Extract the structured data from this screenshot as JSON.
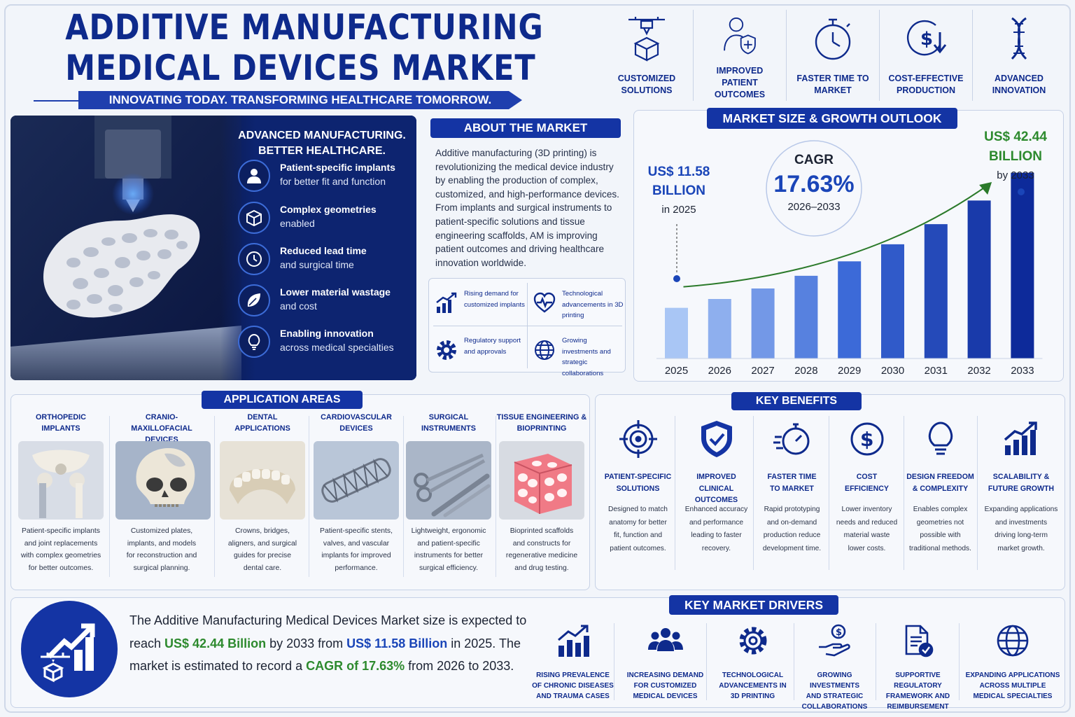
{
  "header": {
    "title_line1": "ADDITIVE MANUFACTURING",
    "title_line2": "MEDICAL DEVICES MARKET",
    "tagline": "INNOVATING TODAY. TRANSFORMING HEALTHCARE TOMORROW."
  },
  "top_features": [
    {
      "label": "CUSTOMIZED SOLUTIONS",
      "icon": "3d-printer-icon"
    },
    {
      "label": "IMPROVED PATIENT OUTCOMES",
      "icon": "patient-shield-icon"
    },
    {
      "label": "FASTER TIME TO MARKET",
      "icon": "stopwatch-icon"
    },
    {
      "label": "COST-EFFECTIVE PRODUCTION",
      "icon": "dollar-down-icon"
    },
    {
      "label": "ADVANCED INNOVATION",
      "icon": "dna-icon"
    }
  ],
  "hero": {
    "heading_line1": "ADVANCED MANUFACTURING.",
    "heading_line2": "BETTER HEALTHCARE.",
    "features": [
      {
        "title": "Patient-specific implants",
        "sub": "for better fit and function",
        "icon": "patient-icon"
      },
      {
        "title": "Complex geometries",
        "sub": "enabled",
        "icon": "cube-icon"
      },
      {
        "title": "Reduced lead time",
        "sub": "and surgical time",
        "icon": "clock-icon"
      },
      {
        "title": "Lower material wastage",
        "sub": "and cost",
        "icon": "leaf-icon"
      },
      {
        "title": "Enabling innovation",
        "sub": "across medical specialties",
        "icon": "lightbulb-icon"
      }
    ]
  },
  "about": {
    "title": "ABOUT THE MARKET",
    "text": "Additive manufacturing (3D printing) is revolutionizing the medical device industry by enabling the production of complex, customized, and high-performance devices. From implants and surgical instruments to patient-specific solutions and tissue engineering scaffolds, AM is improving patient outcomes and driving healthcare innovation worldwide.",
    "highlights": [
      {
        "text": "Rising demand for customized implants",
        "icon": "growth-chart-icon"
      },
      {
        "text": "Technological advancements in 3D printing",
        "icon": "heartbeat-icon"
      },
      {
        "text": "Regulatory support and approvals",
        "icon": "gear-icon"
      },
      {
        "text": "Growing investments and strategic collaborations",
        "icon": "globe-icon"
      }
    ]
  },
  "market": {
    "title": "MARKET SIZE & GROWTH OUTLOOK",
    "start_value": "US$ 11.58",
    "start_unit": "BILLION",
    "start_year": "in 2025",
    "end_value": "US$ 42.44",
    "end_unit": "BILLION",
    "end_year": "by 2033",
    "cagr_label": "CAGR",
    "cagr_value": "17.63%",
    "cagr_period": "2026–2033"
  },
  "chart_data": {
    "type": "bar",
    "categories": [
      "2025",
      "2026",
      "2027",
      "2028",
      "2029",
      "2030",
      "2031",
      "2032",
      "2033"
    ],
    "values": [
      11.58,
      13.6,
      16.0,
      18.9,
      22.2,
      26.1,
      30.7,
      36.1,
      42.44
    ],
    "title": "MARKET SIZE & GROWTH OUTLOOK",
    "xlabel": "",
    "ylabel": "",
    "ylim": [
      0,
      48
    ],
    "colors": [
      "#a9c6f5",
      "#3c6ad8",
      "#0d2a9a"
    ],
    "trend_color": "#2b7a2a"
  },
  "applications": {
    "title": "APPLICATION AREAS",
    "items": [
      {
        "title_l1": "ORTHOPEDIC",
        "title_l2": "IMPLANTS",
        "desc": [
          "Patient-specific implants",
          "and joint replacements",
          "with complex geometries",
          "for better outcomes."
        ]
      },
      {
        "title_l1": "CRANIO-MAXILLOFACIAL",
        "title_l2": "DEVICES",
        "desc": [
          "Customized plates,",
          "implants, and models",
          "for reconstruction and",
          "surgical planning."
        ]
      },
      {
        "title_l1": "DENTAL",
        "title_l2": "APPLICATIONS",
        "desc": [
          "Crowns, bridges,",
          "aligners, and surgical",
          "guides for precise",
          "dental care."
        ]
      },
      {
        "title_l1": "CARDIOVASCULAR",
        "title_l2": "DEVICES",
        "desc": [
          "Patient-specific stents,",
          "valves, and vascular",
          "implants for improved",
          "performance."
        ]
      },
      {
        "title_l1": "SURGICAL",
        "title_l2": "INSTRUMENTS",
        "desc": [
          "Lightweight, ergonomic",
          "and patient-specific",
          "instruments for better",
          "surgical efficiency."
        ]
      },
      {
        "title_l1": "TISSUE ENGINEERING &",
        "title_l2": "BIOPRINTING",
        "desc": [
          "Bioprinted scaffolds",
          "and constructs for",
          "regenerative medicine",
          "and drug testing."
        ]
      }
    ]
  },
  "benefits": {
    "title": "KEY BENEFITS",
    "items": [
      {
        "title_l1": "PATIENT-SPECIFIC",
        "title_l2": "SOLUTIONS",
        "desc": [
          "Designed to match",
          "anatomy for better",
          "fit, function and",
          "patient outcomes."
        ],
        "icon": "target-icon"
      },
      {
        "title_l1": "IMPROVED CLINICAL",
        "title_l2": "OUTCOMES",
        "desc": [
          "Enhanced accuracy",
          "and performance",
          "leading to faster",
          "recovery."
        ],
        "icon": "shield-check-icon"
      },
      {
        "title_l1": "FASTER TIME",
        "title_l2": "TO MARKET",
        "desc": [
          "Rapid prototyping",
          "and on-demand",
          "production reduce",
          "development time."
        ],
        "icon": "fast-stopwatch-icon"
      },
      {
        "title_l1": "COST",
        "title_l2": "EFFICIENCY",
        "desc": [
          "Lower inventory",
          "needs and reduced",
          "material waste",
          "lower costs."
        ],
        "icon": "dollar-icon"
      },
      {
        "title_l1": "DESIGN FREEDOM",
        "title_l2": "& COMPLEXITY",
        "desc": [
          "Enables complex",
          "geometries not",
          "possible with",
          "traditional methods."
        ],
        "icon": "lightbulb-icon"
      },
      {
        "title_l1": "SCALABILITY &",
        "title_l2": "FUTURE GROWTH",
        "desc": [
          "Expanding applications",
          "and investments",
          "driving long-term",
          "market growth."
        ],
        "icon": "growth-chart-icon"
      }
    ]
  },
  "summary": {
    "p1": "The Additive Manufacturing Medical Devices Market size is expected to reach ",
    "v1": "US$ 42.44 Billion",
    "p2": " by 2033 from ",
    "v2": "US$ 11.58 Billion",
    "p3": " in 2025. The market is estimated to record a ",
    "v3": "CAGR of 17.63%",
    "p4": " from 2026 to 2033."
  },
  "drivers": {
    "title": "KEY MARKET DRIVERS",
    "items": [
      {
        "l1": "RISING PREVALENCE",
        "l2": "OF CHRONIC DISEASES",
        "l3": "AND TRAUMA CASES",
        "icon": "bar-growth-icon"
      },
      {
        "l1": "INCREASING DEMAND",
        "l2": "FOR CUSTOMIZED",
        "l3": "MEDICAL DEVICES",
        "icon": "people-icon"
      },
      {
        "l1": "TECHNOLOGICAL",
        "l2": "ADVANCEMENTS IN",
        "l3": "3D PRINTING",
        "icon": "gear-icon"
      },
      {
        "l1": "GROWING INVESTMENTS",
        "l2": "AND STRATEGIC",
        "l3": "COLLABORATIONS",
        "icon": "hand-coin-icon"
      },
      {
        "l1": "SUPPORTIVE REGULATORY",
        "l2": "FRAMEWORK AND",
        "l3": "REIMBURSEMENT",
        "icon": "document-check-icon"
      },
      {
        "l1": "EXPANDING APPLICATIONS",
        "l2": "ACROSS MULTIPLE",
        "l3": "MEDICAL SPECIALTIES",
        "icon": "globe-icon"
      }
    ]
  }
}
